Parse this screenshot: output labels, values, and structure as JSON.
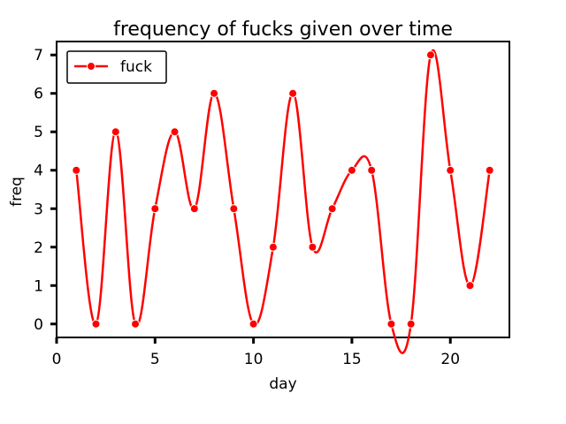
{
  "chart_data": {
    "type": "line",
    "title": "frequency of fucks given over time",
    "xlabel": "day",
    "ylabel": "freq",
    "xlim": [
      0,
      23
    ],
    "ylim": [
      -0.35,
      7.35
    ],
    "x_ticks": [
      0,
      5,
      10,
      15,
      20
    ],
    "y_ticks": [
      0,
      1,
      2,
      3,
      4,
      5,
      6,
      7
    ],
    "grid": false,
    "legend_position": "top-left",
    "series": [
      {
        "name": "fuck",
        "color": "#ff0000",
        "marker": "circle",
        "x": [
          1,
          2,
          3,
          4,
          5,
          6,
          7,
          8,
          9,
          10,
          11,
          12,
          13,
          14,
          15,
          16,
          17,
          18,
          19,
          20,
          21,
          22
        ],
        "y": [
          4,
          0,
          5,
          0,
          3,
          5,
          3,
          6,
          3,
          0,
          2,
          6,
          2,
          3,
          4,
          4,
          0,
          0,
          7,
          4,
          1,
          4
        ]
      }
    ]
  }
}
